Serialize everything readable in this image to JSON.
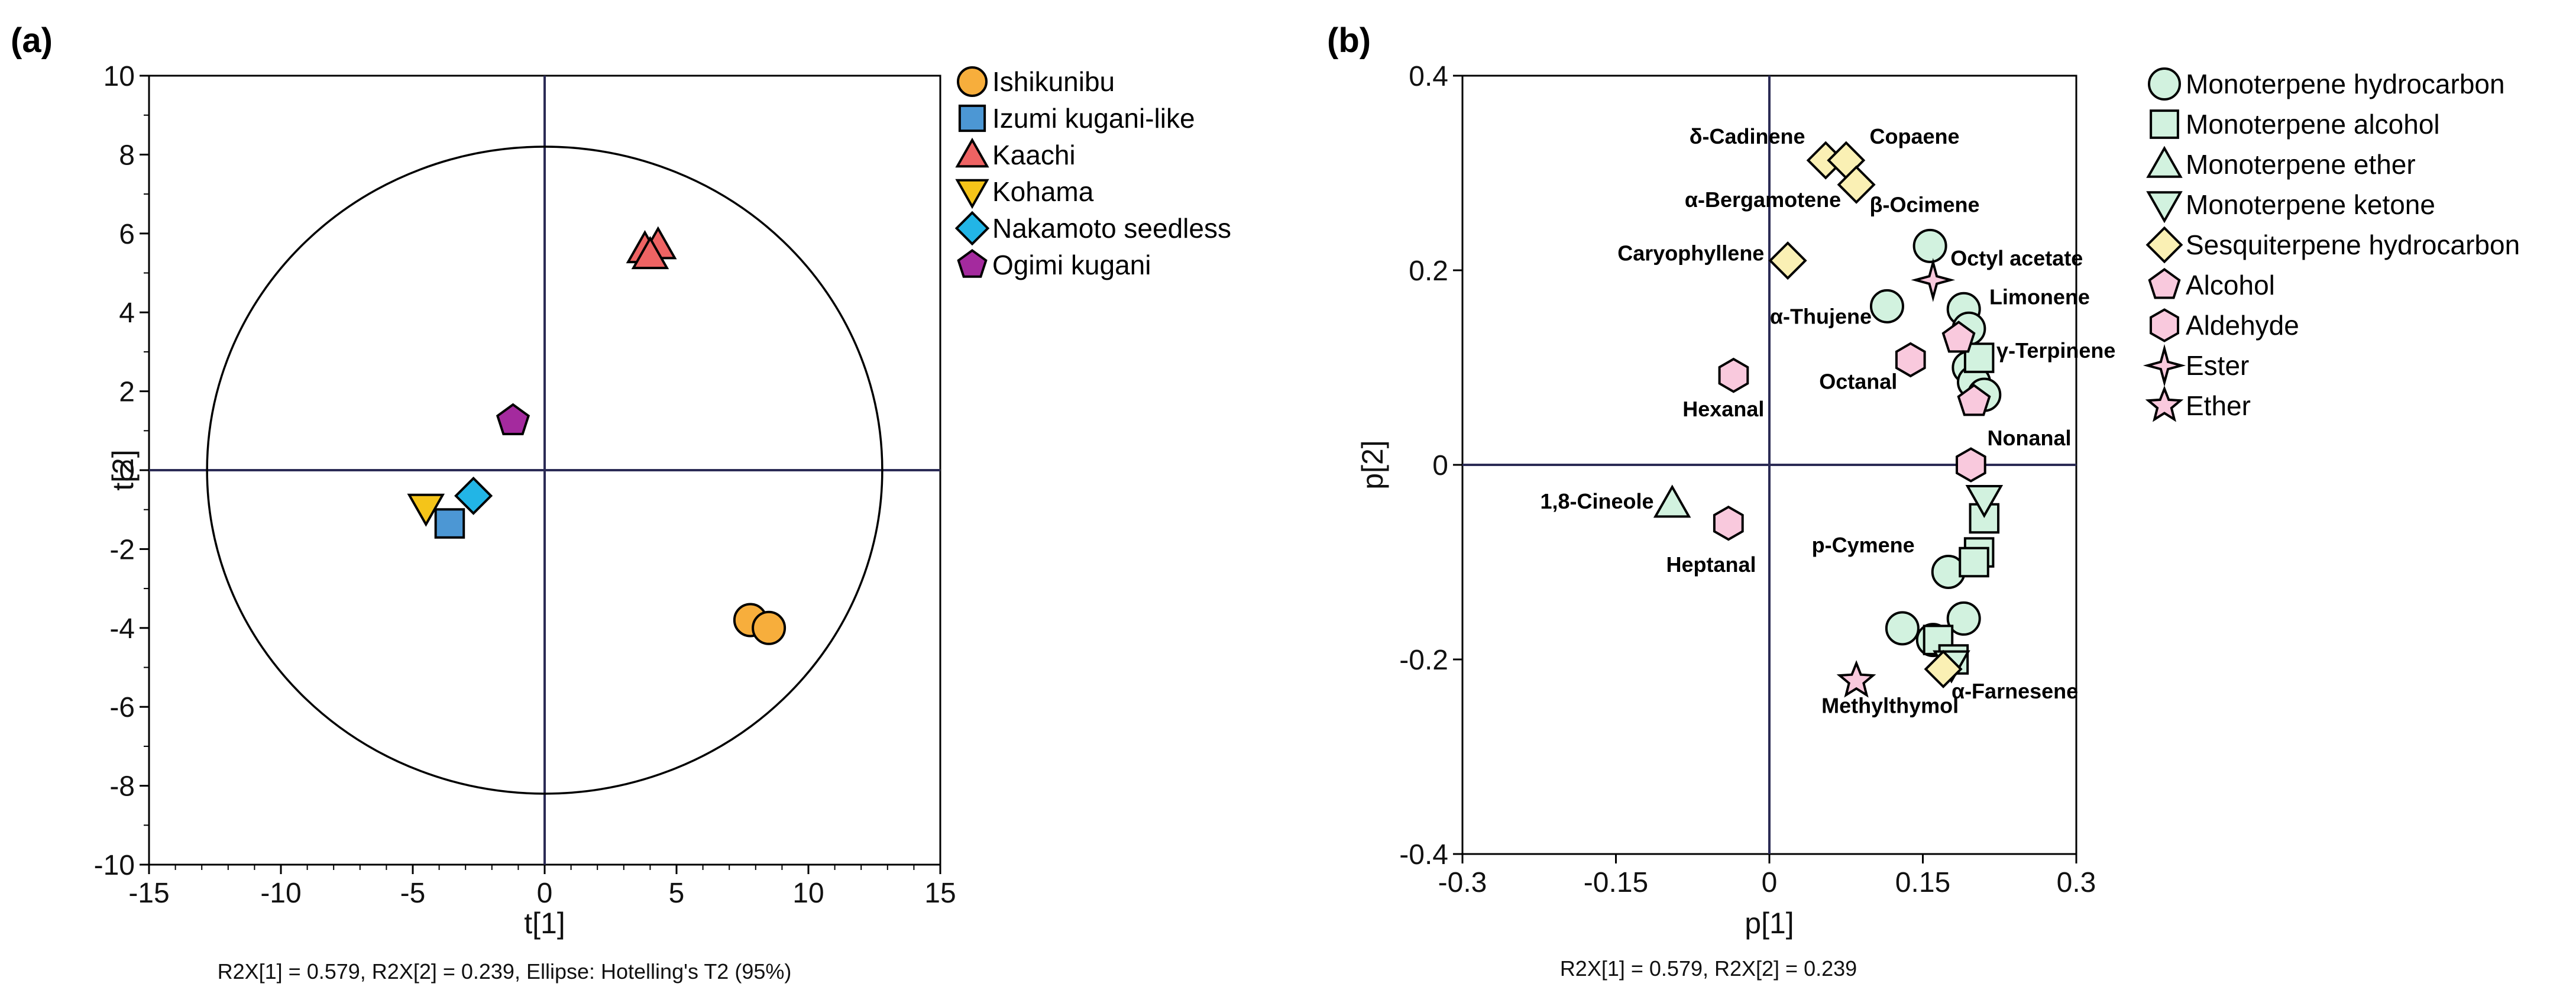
{
  "chart_data": [
    {
      "type": "scatter",
      "panel_label": "(a)",
      "xlabel": "t[1]",
      "ylabel": "t[2]",
      "xlim": [
        -15,
        15
      ],
      "ylim": [
        -10,
        10
      ],
      "x_ticks": [
        "-15",
        "-10",
        "-5",
        "0",
        "5",
        "10",
        "15"
      ],
      "y_ticks": [
        "10",
        "8",
        "6",
        "4",
        "2",
        "0",
        "-2",
        "-4",
        "-6",
        "-8",
        "-10"
      ],
      "footnote": "R2X[1] = 0.579, R2X[2] = 0.239, Ellipse: Hotelling's T2 (95%)",
      "ellipse": {
        "rx": 12.8,
        "ry": 8.2
      },
      "series": [
        {
          "name": "Ishikunibu",
          "marker": "circle",
          "color": "#F7AE3C",
          "points": [
            [
              7.8,
              -3.8
            ],
            [
              8.5,
              -4.0
            ]
          ]
        },
        {
          "name": "Izumi kugani-like",
          "marker": "square",
          "color": "#4C97D4",
          "points": [
            [
              -3.6,
              -1.35
            ]
          ]
        },
        {
          "name": "Kaachi",
          "marker": "triangle-up",
          "color": "#EE6363",
          "points": [
            [
              3.8,
              5.6
            ],
            [
              4.3,
              5.7
            ],
            [
              4.0,
              5.45
            ]
          ]
        },
        {
          "name": "Kohama",
          "marker": "triangle-down",
          "color": "#F5C419",
          "points": [
            [
              -4.5,
              -0.95
            ]
          ]
        },
        {
          "name": "Nakamoto seedless",
          "marker": "diamond",
          "color": "#22B5E6",
          "points": [
            [
              -2.7,
              -0.65
            ]
          ]
        },
        {
          "name": "Ogimi kugani",
          "marker": "pentagon",
          "color": "#A42A9E",
          "points": [
            [
              -1.2,
              1.25
            ]
          ]
        }
      ]
    },
    {
      "type": "scatter",
      "panel_label": "(b)",
      "xlabel": "p[1]",
      "ylabel": "p[2]",
      "xlim": [
        -0.3,
        0.3
      ],
      "ylim": [
        -0.4,
        0.4
      ],
      "x_ticks": [
        "-0.3",
        "-0.15",
        "0",
        "0.15",
        "0.3"
      ],
      "y_ticks": [
        "0.4",
        "0.2",
        "0",
        "-0.2",
        "-0.4"
      ],
      "footnote": "R2X[1] = 0.579, R2X[2] = 0.239",
      "series": [
        {
          "name": "Monoterpene hydrocarbon",
          "marker": "circle",
          "color": "#D2F2DF",
          "points": [
            [
              0.157,
              0.225
            ],
            [
              0.115,
              0.163
            ],
            [
              0.19,
              0.16
            ],
            [
              0.195,
              0.14
            ],
            [
              0.195,
              0.1
            ],
            [
              0.2,
              0.085
            ],
            [
              0.21,
              0.072
            ],
            [
              0.175,
              -0.11
            ],
            [
              0.19,
              -0.158
            ],
            [
              0.13,
              -0.168
            ],
            [
              0.16,
              -0.18
            ]
          ]
        },
        {
          "name": "Monoterpene alcohol",
          "marker": "square",
          "color": "#D2F2DF",
          "points": [
            [
              0.205,
              0.11
            ],
            [
              0.21,
              -0.055
            ],
            [
              0.205,
              -0.09
            ],
            [
              0.2,
              -0.1
            ],
            [
              0.165,
              -0.18
            ],
            [
              0.18,
              -0.2
            ]
          ]
        },
        {
          "name": "Monoterpene ether",
          "marker": "triangle-up",
          "color": "#D2F2DF",
          "points": [
            [
              -0.095,
              -0.04
            ]
          ]
        },
        {
          "name": "Monoterpene ketone",
          "marker": "triangle-down",
          "color": "#D2F2DF",
          "points": [
            [
              0.21,
              -0.035
            ],
            [
              0.178,
              -0.205
            ]
          ]
        },
        {
          "name": "Sesquiterpene hydrocarbon",
          "marker": "diamond",
          "color": "#FAF0B4",
          "points": [
            [
              0.055,
              0.313
            ],
            [
              0.075,
              0.313
            ],
            [
              0.085,
              0.288
            ],
            [
              0.018,
              0.21
            ],
            [
              0.17,
              -0.21
            ]
          ]
        },
        {
          "name": "Alcohol",
          "marker": "pentagon",
          "color": "#F9C9DD",
          "points": [
            [
              0.185,
              0.13
            ],
            [
              0.2,
              0.065
            ]
          ]
        },
        {
          "name": "Aldehyde",
          "marker": "hexagon",
          "color": "#F9C9DD",
          "points": [
            [
              -0.035,
              0.092
            ],
            [
              0.138,
              0.108
            ],
            [
              0.197,
              0.0
            ],
            [
              -0.04,
              -0.06
            ]
          ]
        },
        {
          "name": "Ester",
          "marker": "star4",
          "color": "#F9C9DD",
          "points": [
            [
              0.16,
              0.19
            ]
          ]
        },
        {
          "name": "Ether",
          "marker": "star5",
          "color": "#F9C9DD",
          "points": [
            [
              0.085,
              -0.222
            ]
          ]
        }
      ],
      "annotations": [
        {
          "text": "δ-Cadinene",
          "x": 0.035,
          "y": 0.33,
          "anchor": "end"
        },
        {
          "text": "Copaene",
          "x": 0.098,
          "y": 0.33,
          "anchor": "start"
        },
        {
          "text": "α-Bergamotene",
          "x": 0.07,
          "y": 0.265,
          "anchor": "end"
        },
        {
          "text": "β-Ocimene",
          "x": 0.098,
          "y": 0.26,
          "anchor": "start"
        },
        {
          "text": "Octyl acetate",
          "x": 0.177,
          "y": 0.205,
          "anchor": "start"
        },
        {
          "text": "Caryophyllene",
          "x": -0.005,
          "y": 0.21,
          "anchor": "end"
        },
        {
          "text": "Limonene",
          "x": 0.215,
          "y": 0.165,
          "anchor": "start"
        },
        {
          "text": "α-Thujene",
          "x": 0.1,
          "y": 0.145,
          "anchor": "end"
        },
        {
          "text": "γ-Terpinene",
          "x": 0.222,
          "y": 0.11,
          "anchor": "start"
        },
        {
          "text": "Octanal",
          "x": 0.125,
          "y": 0.078,
          "anchor": "end"
        },
        {
          "text": "Hexanal",
          "x": -0.005,
          "y": 0.05,
          "anchor": "end"
        },
        {
          "text": "Nonanal",
          "x": 0.213,
          "y": 0.02,
          "anchor": "start"
        },
        {
          "text": "1,8-Cineole",
          "x": -0.113,
          "y": -0.045,
          "anchor": "end"
        },
        {
          "text": "Heptanal",
          "x": -0.013,
          "y": -0.11,
          "anchor": "end"
        },
        {
          "text": "p-Cymene",
          "x": 0.142,
          "y": -0.09,
          "anchor": "end"
        },
        {
          "text": "α-Farnesene",
          "x": 0.178,
          "y": -0.24,
          "anchor": "start"
        },
        {
          "text": "Methylthymol",
          "x": 0.118,
          "y": -0.255,
          "anchor": "middle"
        }
      ]
    }
  ]
}
